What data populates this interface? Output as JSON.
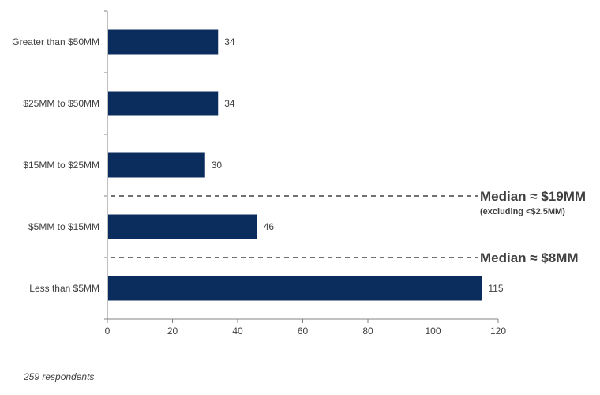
{
  "chart_data": {
    "type": "bar",
    "orientation": "horizontal",
    "categories": [
      "Greater than $50MM",
      "$25MM to $50MM",
      "$15MM to $25MM",
      "$5MM to $15MM",
      "Less than $5MM"
    ],
    "values": [
      34,
      34,
      30,
      46,
      115
    ],
    "xlim": [
      0,
      120
    ],
    "xticks": [
      0,
      20,
      40,
      60,
      80,
      100,
      120
    ],
    "bar_color": "#0b2d5e",
    "grid": false,
    "annotations": [
      {
        "text": "Median ≈ $19MM",
        "subtext": "(excluding <$2.5MM)",
        "between": [
          "$15MM to $25MM",
          "$5MM to $15MM"
        ]
      },
      {
        "text": "Median ≈ $8MM",
        "subtext": "",
        "between": [
          "$5MM to $15MM",
          "Less than $5MM"
        ]
      }
    ]
  },
  "footnote": "259 respondents"
}
